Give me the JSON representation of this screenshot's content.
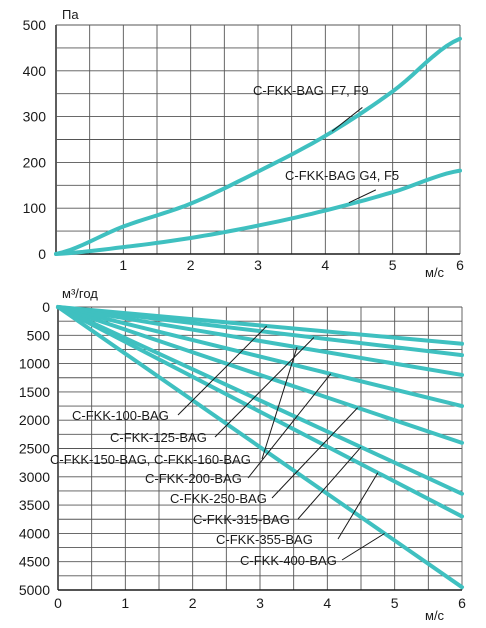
{
  "chart_data": [
    {
      "type": "line",
      "title": "",
      "ylabel": "Па",
      "xlabel": "м/с",
      "xlim": [
        0,
        6
      ],
      "ylim": [
        0,
        500
      ],
      "x_ticks": [
        "1",
        "2",
        "3",
        "4",
        "5",
        "6"
      ],
      "y_ticks": [
        "0",
        "100",
        "200",
        "300",
        "400",
        "500"
      ],
      "grid": true,
      "series": [
        {
          "name": "C-FKK-BAG  F7, F9",
          "x": [
            0,
            1,
            2,
            3,
            4,
            5,
            6
          ],
          "values": [
            0,
            60,
            110,
            180,
            258,
            355,
            470
          ]
        },
        {
          "name": "C-FKK-BAG G4, F5",
          "x": [
            0,
            1,
            2,
            3,
            4,
            5,
            6
          ],
          "values": [
            0,
            15,
            35,
            62,
            95,
            135,
            182
          ]
        }
      ]
    },
    {
      "type": "line",
      "title": "",
      "ylabel": "м³/год",
      "xlabel": "м/с",
      "xlim": [
        0,
        6
      ],
      "ylim": [
        5000,
        0
      ],
      "x_ticks": [
        "0",
        "1",
        "2",
        "3",
        "4",
        "5",
        "6"
      ],
      "y_ticks": [
        "0",
        "500",
        "1000",
        "1500",
        "2000",
        "2500",
        "3000",
        "3500",
        "4000",
        "4500",
        "5000"
      ],
      "grid": true,
      "series": [
        {
          "name": "C-FKK-100-BAG",
          "x": [
            0,
            6
          ],
          "values": [
            0,
            650
          ]
        },
        {
          "name": "C-FKK-125-BAG",
          "x": [
            0,
            6
          ],
          "values": [
            0,
            850
          ]
        },
        {
          "name": "C-FKK-150-BAG, C-FKK-160-BAG",
          "x": [
            0,
            6
          ],
          "values": [
            0,
            1200
          ]
        },
        {
          "name": "C-FKK-200-BAG",
          "x": [
            0,
            6
          ],
          "values": [
            0,
            1750
          ]
        },
        {
          "name": "C-FKK-250-BAG",
          "x": [
            0,
            6
          ],
          "values": [
            0,
            2400
          ]
        },
        {
          "name": "C-FKK-315-BAG",
          "x": [
            0,
            6
          ],
          "values": [
            0,
            3300
          ]
        },
        {
          "name": "C-FKK-355-BAG",
          "x": [
            0,
            6
          ],
          "values": [
            0,
            3700
          ]
        },
        {
          "name": "C-FKK-400-BAG",
          "x": [
            0,
            6
          ],
          "values": [
            0,
            4950
          ]
        }
      ]
    }
  ],
  "style": {
    "line_color": "#3fc0c0",
    "grid_color": "#555555",
    "axis_color": "#1a1a1a"
  }
}
